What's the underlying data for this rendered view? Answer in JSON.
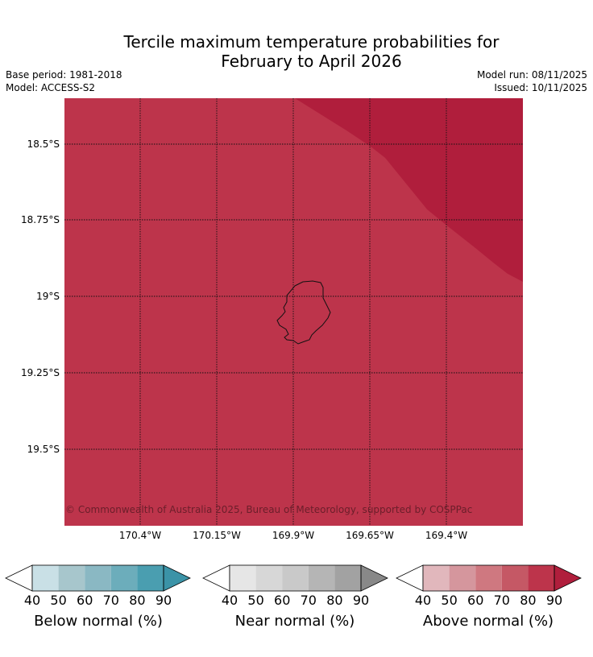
{
  "title_line1": "Tercile maximum temperature probabilities for",
  "title_line2": "February to April 2026",
  "base_period": "Base period: 1981-2018",
  "model": "Model: ACCESS-S2",
  "model_run": "Model run: 08/11/2025",
  "issued": "Issued: 10/11/2025",
  "lat_labels": [
    "18.5°S",
    "18.75°S",
    "19°S",
    "19.25°S",
    "19.5°S"
  ],
  "lon_labels": [
    "170.4°W",
    "170.15°W",
    "169.9°W",
    "169.65°W",
    "169.4°W"
  ],
  "copyright": "© Commonwealth of Australia 2025, Bureau of Meteorology, supported by COSPPac",
  "map_colors": {
    "main": "#bd344b",
    "dark": "#b01e3c"
  },
  "colorbars": [
    {
      "label": "Below normal (%)",
      "ticks": [
        "40",
        "50",
        "60",
        "70",
        "80",
        "90"
      ],
      "colors": [
        "#ffffff",
        "#c9e0e6",
        "#a7c6cc",
        "#8ab8c3",
        "#6cadbb",
        "#4a9eb0",
        "#3b93a7"
      ]
    },
    {
      "label": "Near normal (%)",
      "ticks": [
        "40",
        "50",
        "60",
        "70",
        "80",
        "90"
      ],
      "colors": [
        "#ffffff",
        "#e6e6e6",
        "#d7d7d7",
        "#c9c9c9",
        "#b5b5b5",
        "#a2a2a2",
        "#888888"
      ]
    },
    {
      "label": "Above normal (%)",
      "ticks": [
        "40",
        "50",
        "60",
        "70",
        "80",
        "90"
      ],
      "colors": [
        "#ffffff",
        "#e1b7bc",
        "#d5969d",
        "#cf7880",
        "#c55865",
        "#bd344b",
        "#b01e3c"
      ]
    }
  ]
}
